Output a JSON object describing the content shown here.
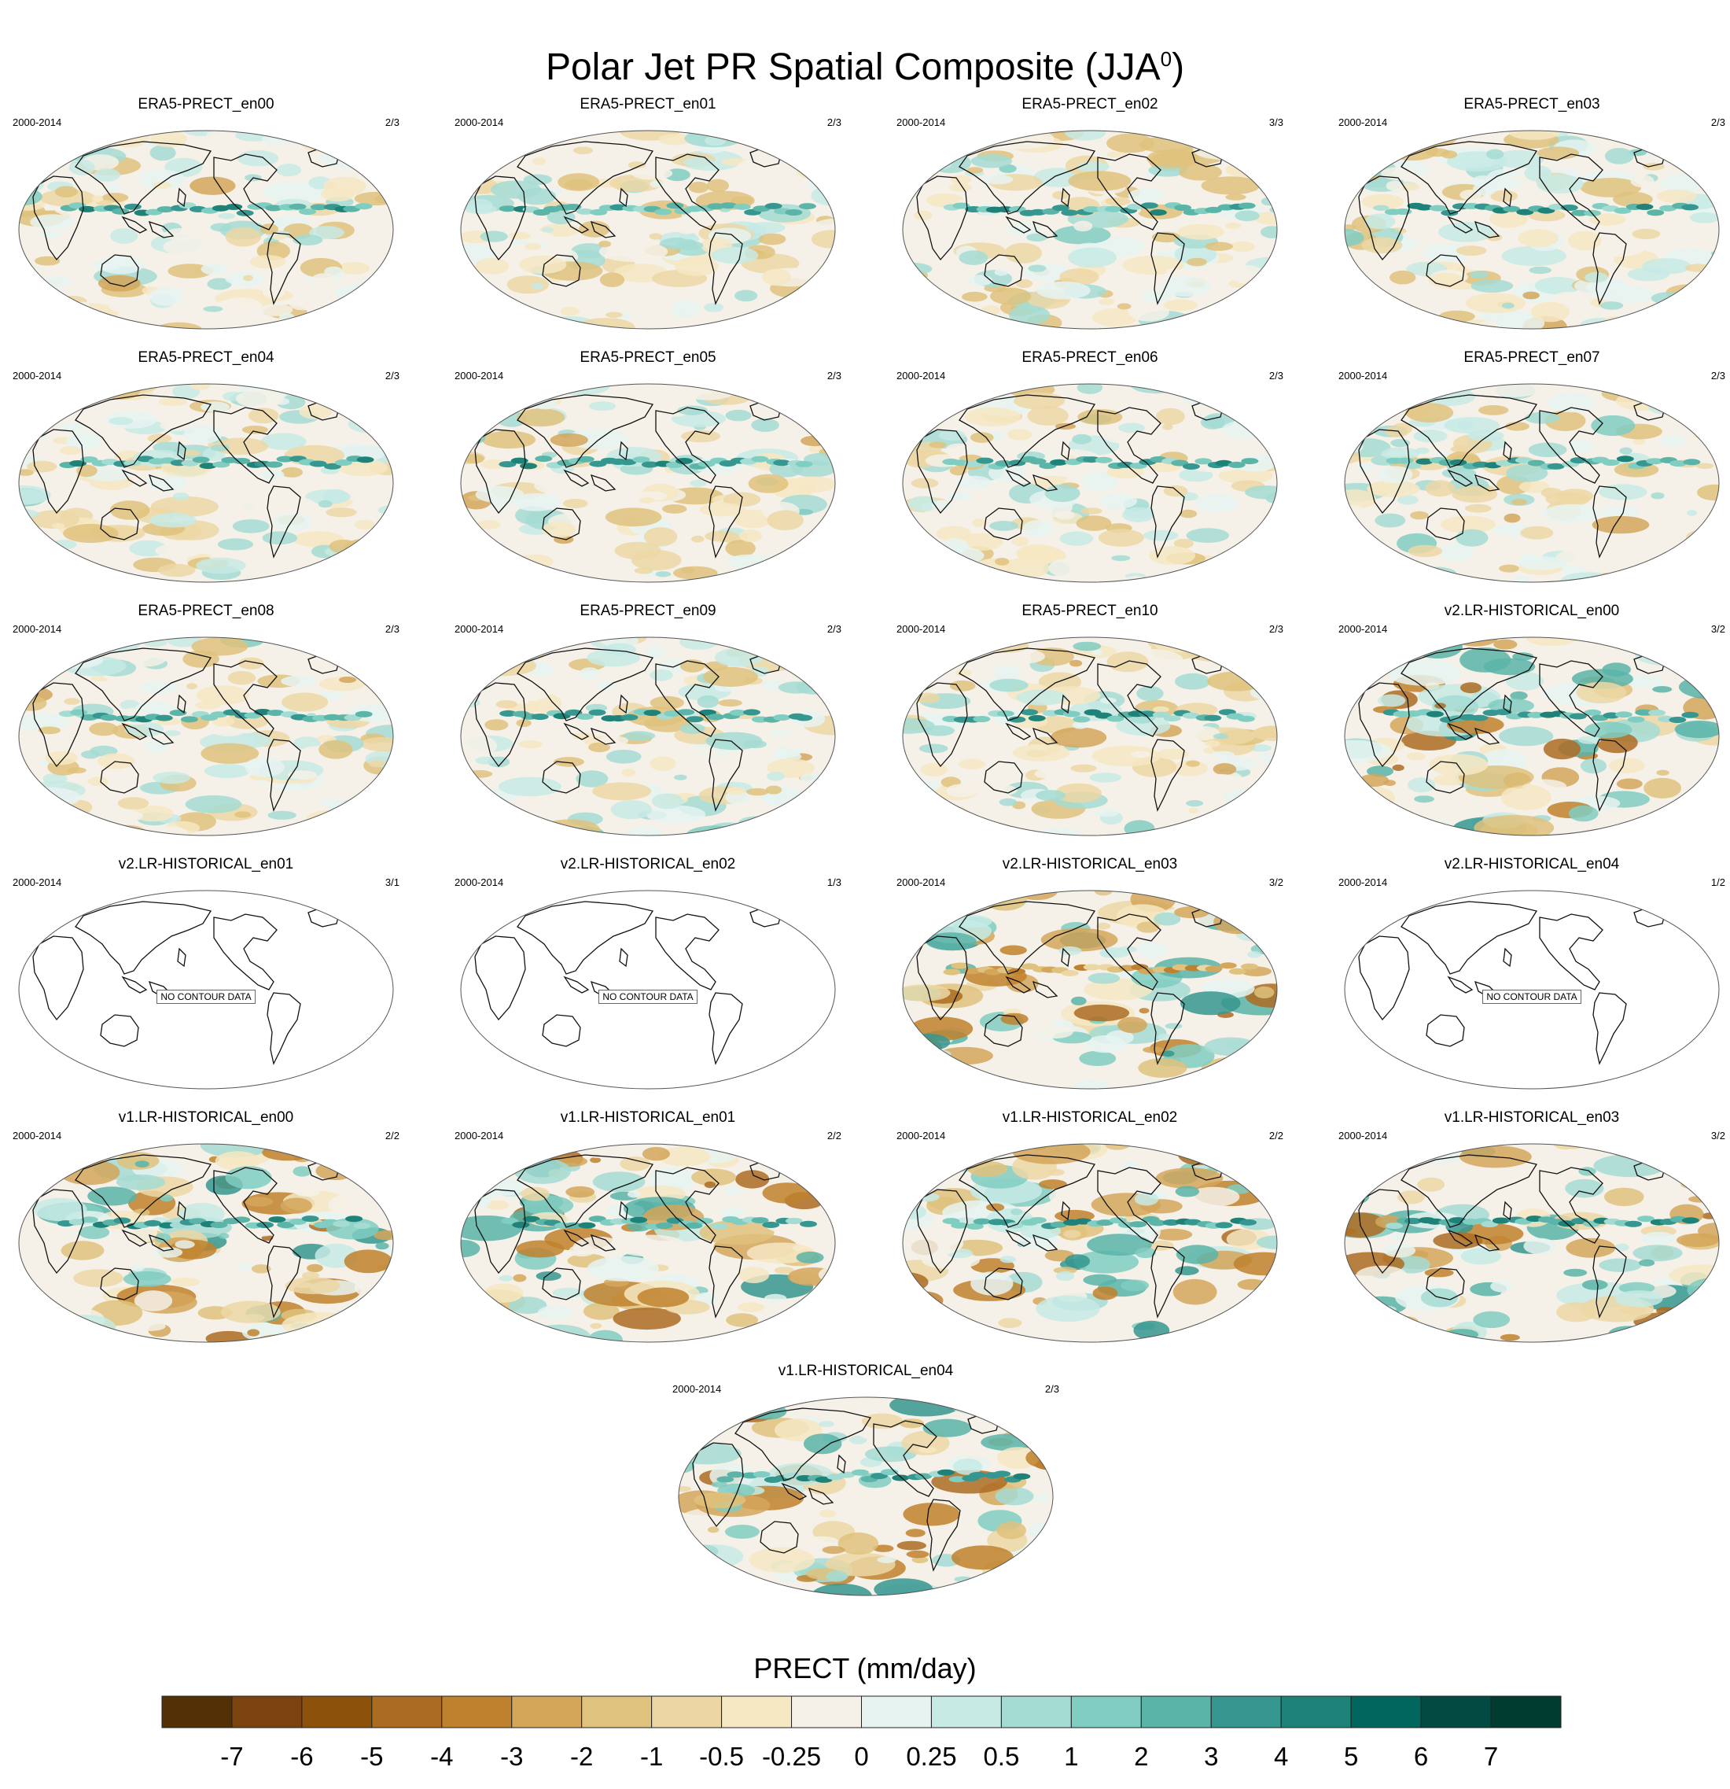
{
  "title": "Polar Jet PR Spatial Composite (JJA",
  "title_sup": "0",
  "title_close": ")",
  "panels": [
    {
      "title": "ERA5-PRECT_en00",
      "left": "2000-2014",
      "right": "2/3",
      "style": "era",
      "seed": 11
    },
    {
      "title": "ERA5-PRECT_en01",
      "left": "2000-2014",
      "right": "2/3",
      "style": "era",
      "seed": 12
    },
    {
      "title": "ERA5-PRECT_en02",
      "left": "2000-2014",
      "right": "3/3",
      "style": "era",
      "seed": 13
    },
    {
      "title": "ERA5-PRECT_en03",
      "left": "2000-2014",
      "right": "2/3",
      "style": "era",
      "seed": 14
    },
    {
      "title": "ERA5-PRECT_en04",
      "left": "2000-2014",
      "right": "2/3",
      "style": "era",
      "seed": 15
    },
    {
      "title": "ERA5-PRECT_en05",
      "left": "2000-2014",
      "right": "2/3",
      "style": "era",
      "seed": 16
    },
    {
      "title": "ERA5-PRECT_en06",
      "left": "2000-2014",
      "right": "2/3",
      "style": "era",
      "seed": 17
    },
    {
      "title": "ERA5-PRECT_en07",
      "left": "2000-2014",
      "right": "2/3",
      "style": "era",
      "seed": 18
    },
    {
      "title": "ERA5-PRECT_en08",
      "left": "2000-2014",
      "right": "2/3",
      "style": "era",
      "seed": 19
    },
    {
      "title": "ERA5-PRECT_en09",
      "left": "2000-2014",
      "right": "2/3",
      "style": "era",
      "seed": 20
    },
    {
      "title": "ERA5-PRECT_en10",
      "left": "2000-2014",
      "right": "2/3",
      "style": "era",
      "seed": 21
    },
    {
      "title": "v2.LR-HISTORICAL_en00",
      "left": "2000-2014",
      "right": "3/2",
      "style": "v2",
      "seed": 31
    },
    {
      "title": "v2.LR-HISTORICAL_en01",
      "left": "2000-2014",
      "right": "3/1",
      "style": "empty",
      "seed": 32,
      "nodata": "NO CONTOUR DATA"
    },
    {
      "title": "v2.LR-HISTORICAL_en02",
      "left": "2000-2014",
      "right": "1/3",
      "style": "empty",
      "seed": 33,
      "nodata": "NO CONTOUR DATA"
    },
    {
      "title": "v2.LR-HISTORICAL_en03",
      "left": "2000-2014",
      "right": "3/2",
      "style": "v2b",
      "seed": 34
    },
    {
      "title": "v2.LR-HISTORICAL_en04",
      "left": "2000-2014",
      "right": "1/2",
      "style": "empty",
      "seed": 35,
      "nodata": "NO CONTOUR DATA"
    },
    {
      "title": "v1.LR-HISTORICAL_en00",
      "left": "2000-2014",
      "right": "2/2",
      "style": "v1",
      "seed": 41
    },
    {
      "title": "v1.LR-HISTORICAL_en01",
      "left": "2000-2014",
      "right": "2/2",
      "style": "v1",
      "seed": 42
    },
    {
      "title": "v1.LR-HISTORICAL_en02",
      "left": "2000-2014",
      "right": "2/2",
      "style": "v1",
      "seed": 43
    },
    {
      "title": "v1.LR-HISTORICAL_en03",
      "left": "2000-2014",
      "right": "3/2",
      "style": "v1",
      "seed": 44
    },
    {
      "title": "v1.LR-HISTORICAL_en04",
      "left": "2000-2014",
      "right": "2/3",
      "style": "v1",
      "seed": 45
    }
  ],
  "colorbar": {
    "label": "PRECT (mm/day)",
    "tick_labels": [
      "-7",
      "-6",
      "-5",
      "-4",
      "-3",
      "-2",
      "-1",
      "-0.5",
      "-0.25",
      "0",
      "0.25",
      "0.5",
      "1",
      "2",
      "3",
      "4",
      "5",
      "6",
      "7"
    ],
    "colors": [
      "#543005",
      "#7a4310",
      "#8c510a",
      "#ab6c22",
      "#bf812d",
      "#d4a65a",
      "#dfc27d",
      "#ecd7a4",
      "#f6e8c3",
      "#f5f1e8",
      "#e6f3f1",
      "#c7eae5",
      "#a4dcd3",
      "#80cdc1",
      "#5ab4a8",
      "#35978f",
      "#1e8279",
      "#01665e",
      "#024a42",
      "#003c30"
    ]
  }
}
